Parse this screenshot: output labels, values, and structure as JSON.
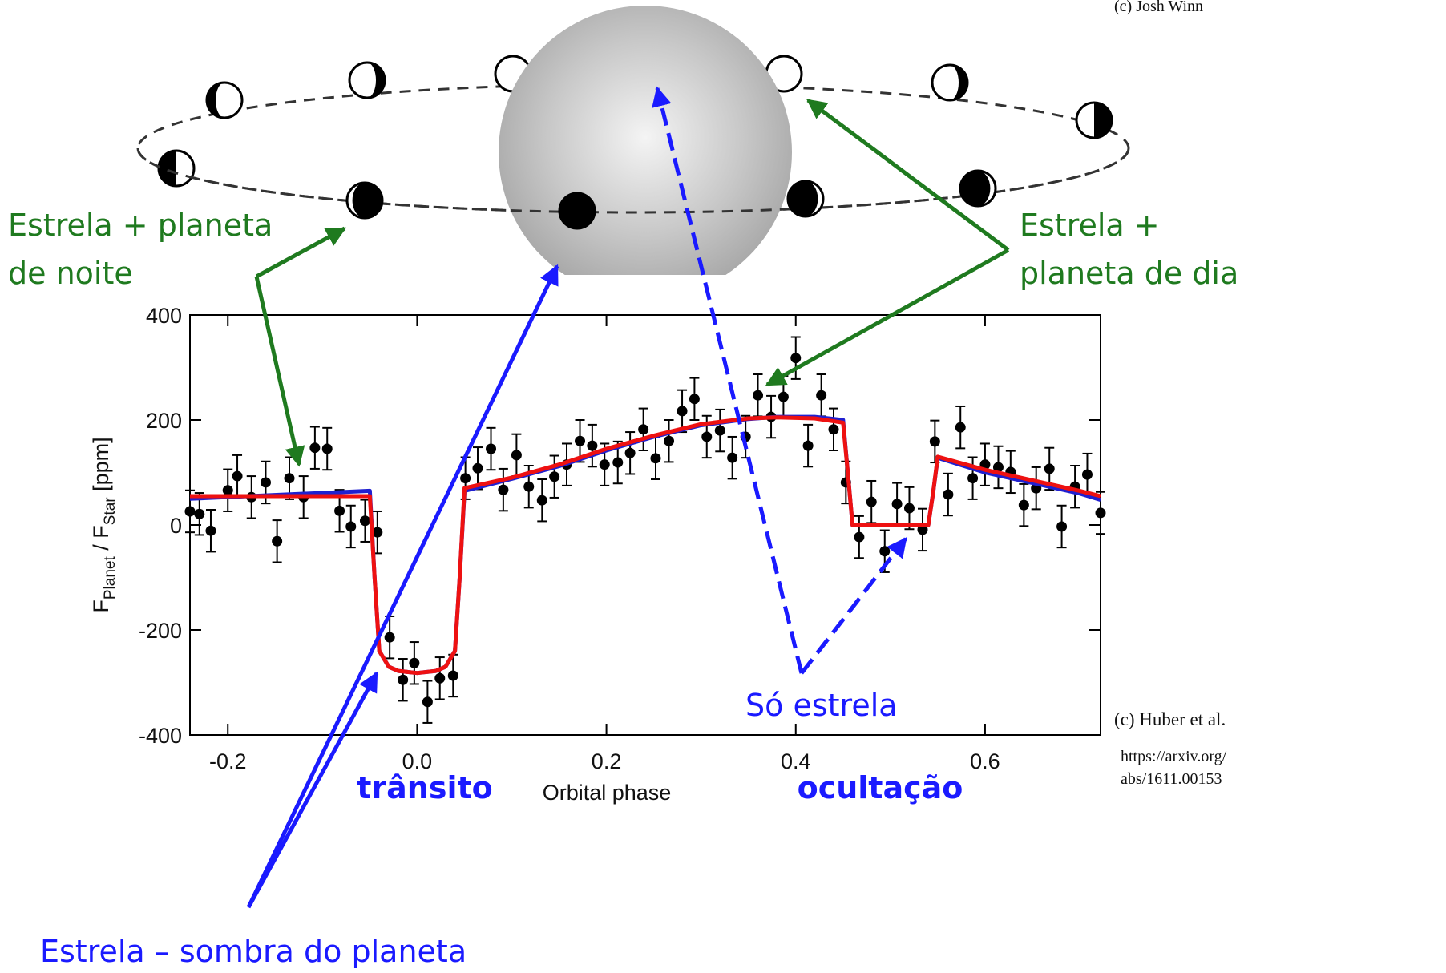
{
  "diagram": {
    "credit": "(c) Josh Winn"
  },
  "chart_data": {
    "type": "scatter",
    "xlabel": "Orbital phase",
    "ylabel": [
      "F",
      "Planet",
      " / F",
      "Star",
      " [ppm]"
    ],
    "xlim": [
      -0.24,
      0.722
    ],
    "ylim": [
      -400,
      400
    ],
    "xticks": [
      -0.2,
      {
        "value": 0,
        "label": "0.0"
      },
      0.2,
      0.4,
      0.6
    ],
    "yticks": [
      -400,
      -200,
      0,
      200,
      400
    ],
    "series": [
      {
        "type": "scatter",
        "color": "#000000",
        "x": [
          -0.24,
          -0.23,
          -0.218,
          -0.2,
          -0.19,
          -0.175,
          -0.16,
          -0.148,
          -0.135,
          -0.12,
          -0.108,
          -0.095,
          -0.082,
          -0.07,
          -0.055,
          -0.042,
          -0.029,
          -0.015,
          -0.003,
          0.011,
          0.024,
          0.038,
          0.051,
          0.064,
          0.078,
          0.091,
          0.105,
          0.118,
          0.132,
          0.145,
          0.158,
          0.172,
          0.185,
          0.198,
          0.212,
          0.225,
          0.239,
          0.252,
          0.266,
          0.28,
          0.293,
          0.306,
          0.32,
          0.333,
          0.347,
          0.36,
          0.374,
          0.387,
          0.4,
          0.413,
          0.427,
          0.44,
          0.453,
          0.467,
          0.48,
          0.494,
          0.507,
          0.52,
          0.534,
          0.547,
          0.561,
          0.574,
          0.587,
          0.6,
          0.614,
          0.627,
          0.641,
          0.654,
          0.668,
          0.681,
          0.695,
          0.708,
          0.722
        ],
        "values": [
          26,
          21,
          -11,
          66,
          93,
          53,
          81,
          -31,
          89,
          53,
          147,
          145,
          27,
          -3,
          8,
          -14,
          -214,
          -295,
          -263,
          -337,
          -292,
          -287,
          89,
          108,
          145,
          67,
          133,
          73,
          47,
          92,
          115,
          160,
          151,
          115,
          119,
          137,
          182,
          127,
          160,
          217,
          240,
          168,
          180,
          128,
          168,
          247,
          206,
          244,
          318,
          151,
          247,
          182,
          81,
          -23,
          44,
          -50,
          40,
          32,
          -9,
          159,
          58,
          186,
          89,
          115,
          110,
          101,
          38,
          70,
          107,
          -3,
          73,
          96,
          23
        ],
        "errors": [
          40,
          40,
          40,
          40,
          40,
          40,
          40,
          40,
          40,
          40,
          40,
          40,
          40,
          40,
          40,
          40,
          40,
          40,
          40,
          40,
          40,
          40,
          40,
          40,
          40,
          40,
          40,
          40,
          40,
          40,
          40,
          40,
          40,
          40,
          40,
          40,
          40,
          40,
          40,
          40,
          40,
          40,
          40,
          40,
          40,
          40,
          40,
          40,
          40,
          40,
          40,
          40,
          40,
          40,
          40,
          40,
          40,
          40,
          40,
          40,
          40,
          40,
          40,
          40,
          40,
          40,
          40,
          40,
          40,
          40,
          40,
          40,
          40
        ]
      },
      {
        "type": "line",
        "color": "#2020d0",
        "x": [
          -0.24,
          -0.05,
          -0.045,
          -0.04,
          -0.03,
          -0.02,
          0,
          0.02,
          0.03,
          0.04,
          0.045,
          0.05,
          0.1,
          0.15,
          0.2,
          0.25,
          0.3,
          0.35,
          0.38,
          0.42,
          0.45,
          0.455,
          0.46,
          0.54,
          0.545,
          0.55,
          0.6,
          0.65,
          0.7,
          0.722
        ],
        "values": [
          50,
          65,
          -100,
          -240,
          -270,
          -278,
          -282,
          -278,
          -270,
          -240,
          -100,
          65,
          88,
          112,
          142,
          168,
          190,
          202,
          206,
          206,
          200,
          100,
          0,
          0,
          60,
          128,
          100,
          80,
          60,
          48
        ]
      },
      {
        "type": "line",
        "color": "#ee1111",
        "x": [
          -0.24,
          -0.05,
          -0.045,
          -0.04,
          -0.03,
          -0.02,
          0,
          0.02,
          0.03,
          0.04,
          0.045,
          0.05,
          0.1,
          0.15,
          0.2,
          0.25,
          0.3,
          0.35,
          0.38,
          0.42,
          0.45,
          0.455,
          0.46,
          0.54,
          0.545,
          0.55,
          0.6,
          0.65,
          0.7,
          0.722
        ],
        "values": [
          55,
          55,
          -100,
          -240,
          -270,
          -278,
          -282,
          -278,
          -270,
          -240,
          -100,
          70,
          90,
          115,
          145,
          170,
          192,
          203,
          205,
          203,
          195,
          100,
          0,
          0,
          60,
          130,
          105,
          85,
          65,
          55
        ]
      }
    ]
  },
  "annotations": {
    "night": [
      "Estrela + planeta",
      "de noite"
    ],
    "day": [
      "Estrela +",
      "planeta de dia"
    ],
    "star_only": "Só estrela",
    "transit": "trânsito",
    "occultation": "ocultação",
    "shadow": "Estrela – sombra do planeta",
    "credit": "(c) Huber et al.",
    "url": [
      "https://arxiv.org/",
      "abs/1611.00153"
    ]
  }
}
